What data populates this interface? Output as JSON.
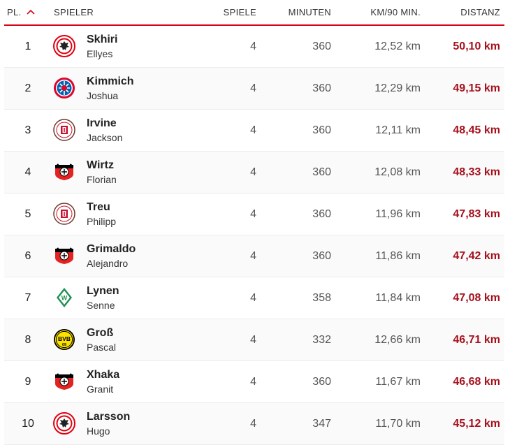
{
  "header": {
    "rank": "PL.",
    "player": "SPIELER",
    "games": "SPIELE",
    "minutes": "MINUTEN",
    "km_per_90": "KM/90 MIN.",
    "distance": "DISTANZ",
    "sort_icon": "chevron-up-icon"
  },
  "colors": {
    "accent": "#d20515",
    "distance_text": "#a5121e"
  },
  "rows": [
    {
      "rank": "1",
      "club": "eintracht-frankfurt-logo",
      "lastname": "Skhiri",
      "firstname": "Ellyes",
      "games": "4",
      "minutes": "360",
      "km_per_90": "12,52 km",
      "distance": "50,10 km"
    },
    {
      "rank": "2",
      "club": "fc-bayern-logo",
      "lastname": "Kimmich",
      "firstname": "Joshua",
      "games": "4",
      "minutes": "360",
      "km_per_90": "12,29 km",
      "distance": "49,15 km"
    },
    {
      "rank": "3",
      "club": "st-pauli-logo",
      "lastname": "Irvine",
      "firstname": "Jackson",
      "games": "4",
      "minutes": "360",
      "km_per_90": "12,11 km",
      "distance": "48,45 km"
    },
    {
      "rank": "4",
      "club": "bayer-leverkusen-logo",
      "lastname": "Wirtz",
      "firstname": "Florian",
      "games": "4",
      "minutes": "360",
      "km_per_90": "12,08 km",
      "distance": "48,33 km"
    },
    {
      "rank": "5",
      "club": "st-pauli-logo",
      "lastname": "Treu",
      "firstname": "Philipp",
      "games": "4",
      "minutes": "360",
      "km_per_90": "11,96 km",
      "distance": "47,83 km"
    },
    {
      "rank": "6",
      "club": "bayer-leverkusen-logo",
      "lastname": "Grimaldo",
      "firstname": "Alejandro",
      "games": "4",
      "minutes": "360",
      "km_per_90": "11,86 km",
      "distance": "47,42 km"
    },
    {
      "rank": "7",
      "club": "werder-bremen-logo",
      "lastname": "Lynen",
      "firstname": "Senne",
      "games": "4",
      "minutes": "358",
      "km_per_90": "11,84 km",
      "distance": "47,08 km"
    },
    {
      "rank": "8",
      "club": "borussia-dortmund-logo",
      "lastname": "Groß",
      "firstname": "Pascal",
      "games": "4",
      "minutes": "332",
      "km_per_90": "12,66 km",
      "distance": "46,71 km"
    },
    {
      "rank": "9",
      "club": "bayer-leverkusen-logo",
      "lastname": "Xhaka",
      "firstname": "Granit",
      "games": "4",
      "minutes": "360",
      "km_per_90": "11,67 km",
      "distance": "46,68 km"
    },
    {
      "rank": "10",
      "club": "eintracht-frankfurt-logo",
      "lastname": "Larsson",
      "firstname": "Hugo",
      "games": "4",
      "minutes": "347",
      "km_per_90": "11,70 km",
      "distance": "45,12 km"
    }
  ]
}
